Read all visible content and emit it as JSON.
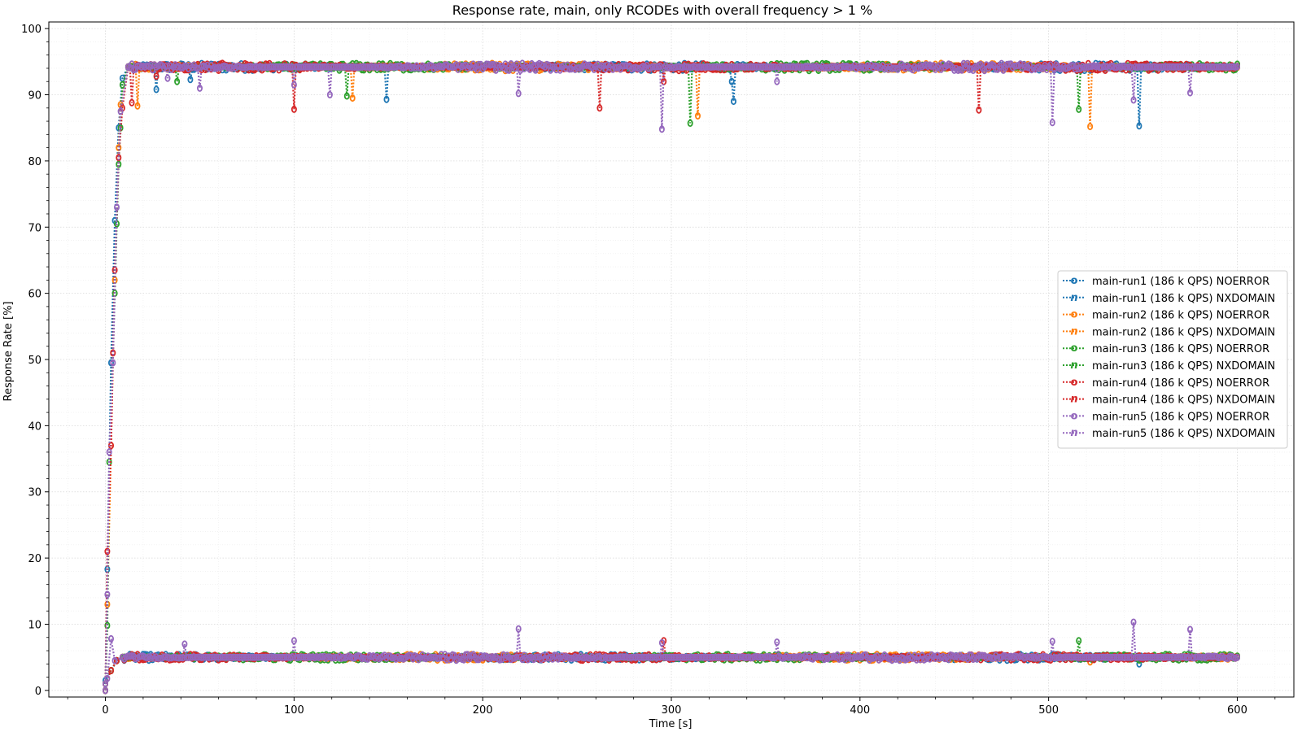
{
  "chart_data": {
    "type": "line",
    "title": "Response rate, main, only RCODEs with overall frequency > 1 %",
    "xlabel": "Time [s]",
    "ylabel": "Response Rate [%]",
    "xlim": [
      -30,
      630
    ],
    "ylim": [
      -1,
      101
    ],
    "xticks": [
      0,
      100,
      200,
      300,
      400,
      500,
      600
    ],
    "yticks": [
      0,
      10,
      20,
      30,
      40,
      50,
      60,
      70,
      80,
      90,
      100
    ],
    "grid": true,
    "legend_position": "center-right",
    "series": [
      {
        "name": "main-run1 (186 k QPS) NOERROR",
        "rcode": "NOERROR",
        "color": "#1f77b4",
        "marker": "o",
        "ramp": [
          [
            0,
            0
          ],
          [
            1,
            18.3
          ],
          [
            3,
            49.5
          ],
          [
            5,
            71
          ],
          [
            7,
            85
          ],
          [
            9,
            92.5
          ],
          [
            12,
            94.2
          ]
        ],
        "steady": 94.2,
        "dips": [
          [
            27,
            90.8
          ],
          [
            45,
            92.3
          ],
          [
            149,
            89.3
          ],
          [
            332,
            92.0
          ],
          [
            333,
            89.0
          ],
          [
            548,
            85.3
          ]
        ]
      },
      {
        "name": "main-run1 (186 k QPS) NXDOMAIN",
        "rcode": "NXDOMAIN",
        "color": "#1f77b4",
        "marker": "n",
        "ramp": [
          [
            0,
            1.5
          ],
          [
            3,
            3
          ],
          [
            6,
            4.5
          ],
          [
            9,
            5
          ]
        ],
        "steady": 5.0,
        "dips": [
          [
            548,
            4
          ]
        ]
      },
      {
        "name": "main-run2 (186 k QPS) NOERROR",
        "rcode": "NOERROR",
        "color": "#ff7f0e",
        "marker": "o",
        "ramp": [
          [
            0,
            0
          ],
          [
            1,
            13
          ],
          [
            3,
            37
          ],
          [
            5,
            62
          ],
          [
            7,
            82
          ],
          [
            8,
            88.5
          ],
          [
            12,
            94.2
          ]
        ],
        "steady": 94.2,
        "dips": [
          [
            17,
            88.3
          ],
          [
            131,
            89.5
          ],
          [
            314,
            86.8
          ],
          [
            522,
            85.2
          ]
        ]
      },
      {
        "name": "main-run2 (186 k QPS) NXDOMAIN",
        "rcode": "NXDOMAIN",
        "color": "#ff7f0e",
        "marker": "n",
        "ramp": [
          [
            0,
            1
          ],
          [
            3,
            3
          ],
          [
            6,
            4.5
          ],
          [
            9,
            5
          ]
        ],
        "steady": 5.0,
        "dips": [
          [
            522,
            4.3
          ]
        ]
      },
      {
        "name": "main-run3 (186 k QPS) NOERROR",
        "rcode": "NOERROR",
        "color": "#2ca02c",
        "marker": "o",
        "ramp": [
          [
            0,
            0
          ],
          [
            1,
            9.8
          ],
          [
            2,
            34.5
          ],
          [
            5,
            60
          ],
          [
            6,
            70.5
          ],
          [
            7,
            79.5
          ],
          [
            8,
            85
          ],
          [
            9,
            91.5
          ],
          [
            12,
            94.2
          ]
        ],
        "steady": 94.2,
        "dips": [
          [
            38,
            92.0
          ],
          [
            128,
            89.8
          ],
          [
            310,
            85.7
          ],
          [
            516,
            87.8
          ]
        ]
      },
      {
        "name": "main-run3 (186 k QPS) NXDOMAIN",
        "rcode": "NXDOMAIN",
        "color": "#2ca02c",
        "marker": "n",
        "ramp": [
          [
            0,
            1
          ],
          [
            3,
            3
          ],
          [
            6,
            4.5
          ],
          [
            9,
            5
          ]
        ],
        "steady": 5.0,
        "dips": [
          [
            516,
            7.5
          ]
        ]
      },
      {
        "name": "main-run4 (186 k QPS) NOERROR",
        "rcode": "NOERROR",
        "color": "#d62728",
        "marker": "o",
        "ramp": [
          [
            0,
            0
          ],
          [
            1,
            21
          ],
          [
            3,
            37
          ],
          [
            4,
            51
          ],
          [
            5,
            63.5
          ],
          [
            7,
            80.5
          ],
          [
            9,
            88
          ],
          [
            12,
            94.2
          ]
        ],
        "steady": 94.2,
        "dips": [
          [
            14,
            88.8
          ],
          [
            27,
            92.8
          ],
          [
            100,
            87.8
          ],
          [
            262,
            88.0
          ],
          [
            296,
            92.0
          ],
          [
            463,
            87.7
          ]
        ]
      },
      {
        "name": "main-run4 (186 k QPS) NXDOMAIN",
        "rcode": "NXDOMAIN",
        "color": "#d62728",
        "marker": "n",
        "ramp": [
          [
            0,
            1
          ],
          [
            3,
            3
          ],
          [
            6,
            4.5
          ],
          [
            9,
            5
          ]
        ],
        "steady": 5.0,
        "dips": [
          [
            296,
            7.5
          ]
        ]
      },
      {
        "name": "main-run5 (186 k QPS) NOERROR",
        "rcode": "NOERROR",
        "color": "#9467bd",
        "marker": "o",
        "ramp": [
          [
            0,
            0
          ],
          [
            1,
            14.5
          ],
          [
            2,
            36
          ],
          [
            4,
            49.5
          ],
          [
            6,
            73
          ],
          [
            8,
            87.5
          ],
          [
            12,
            94.2
          ]
        ],
        "steady": 94.2,
        "dips": [
          [
            33,
            92.5
          ],
          [
            50,
            91.0
          ],
          [
            100,
            91.5
          ],
          [
            119,
            90.0
          ],
          [
            219,
            90.2
          ],
          [
            295,
            84.8
          ],
          [
            356,
            92.0
          ],
          [
            502,
            85.8
          ],
          [
            545,
            89.2
          ],
          [
            575,
            90.3
          ]
        ]
      },
      {
        "name": "main-run5 (186 k QPS) NXDOMAIN",
        "rcode": "NXDOMAIN",
        "color": "#9467bd",
        "marker": "n",
        "ramp": [
          [
            0,
            1
          ],
          [
            1,
            1.8
          ],
          [
            3,
            7.8
          ],
          [
            5,
            4.5
          ],
          [
            9,
            5
          ]
        ],
        "steady": 5.0,
        "dips": [
          [
            42,
            7
          ],
          [
            100,
            7.5
          ],
          [
            219,
            9.3
          ],
          [
            295,
            7.2
          ],
          [
            356,
            7.3
          ],
          [
            502,
            7.4
          ],
          [
            545,
            10.3
          ],
          [
            575,
            9.2
          ]
        ]
      }
    ]
  }
}
